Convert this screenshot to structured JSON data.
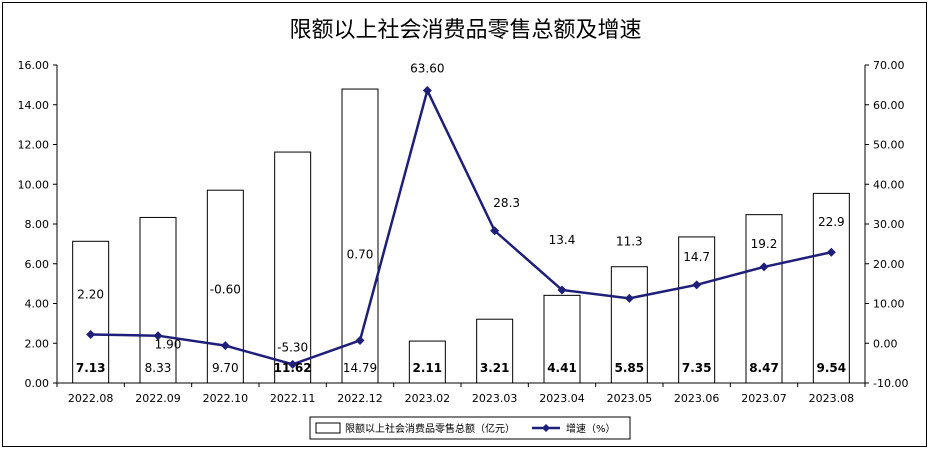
{
  "chart_data": {
    "type": "bar+line",
    "title": "限额以上社会消费品零售总额及增速",
    "categories": [
      "2022.08",
      "2022.09",
      "2022.10",
      "2022.11",
      "2022.12",
      "2023.02",
      "2023.03",
      "2023.04",
      "2023.05",
      "2023.06",
      "2023.07",
      "2023.08"
    ],
    "series": [
      {
        "name": "限额以上社会消费品零售总额（亿元）",
        "type": "bar",
        "axis": "left",
        "values": [
          7.13,
          8.33,
          9.7,
          11.62,
          14.79,
          2.11,
          3.21,
          4.41,
          5.85,
          7.35,
          8.47,
          9.54
        ],
        "labels": [
          "7.13",
          "8.33",
          "9.70",
          "11.62",
          "14.79",
          "2.11",
          "3.21",
          "4.41",
          "5.85",
          "7.35",
          "8.47",
          "9.54"
        ],
        "bold_labels": [
          true,
          false,
          false,
          true,
          false,
          true,
          true,
          true,
          true,
          true,
          true,
          true
        ]
      },
      {
        "name": "增速（%）",
        "type": "line",
        "axis": "right",
        "values": [
          2.2,
          1.9,
          -0.6,
          -5.3,
          0.7,
          63.6,
          28.3,
          13.4,
          11.3,
          14.7,
          19.2,
          22.9
        ],
        "labels": [
          "2.20",
          "1.90",
          "-0.60",
          "-5.30",
          "0.70",
          "63.60",
          "28.3",
          "13.4",
          "11.3",
          "14.7",
          "19.2",
          "22.9"
        ],
        "color": "#1f1f7a"
      }
    ],
    "y_left": {
      "min": 0,
      "max": 16,
      "step": 2,
      "tick_labels": [
        "0.00",
        "2.00",
        "4.00",
        "6.00",
        "8.00",
        "10.00",
        "12.00",
        "14.00",
        "16.00"
      ]
    },
    "y_right": {
      "min": -10,
      "max": 70,
      "step": 10,
      "tick_labels": [
        "-10.00",
        "0.00",
        "10.00",
        "20.00",
        "30.00",
        "40.00",
        "50.00",
        "60.00",
        "70.00"
      ]
    },
    "grid": false,
    "legend_position": "bottom"
  }
}
